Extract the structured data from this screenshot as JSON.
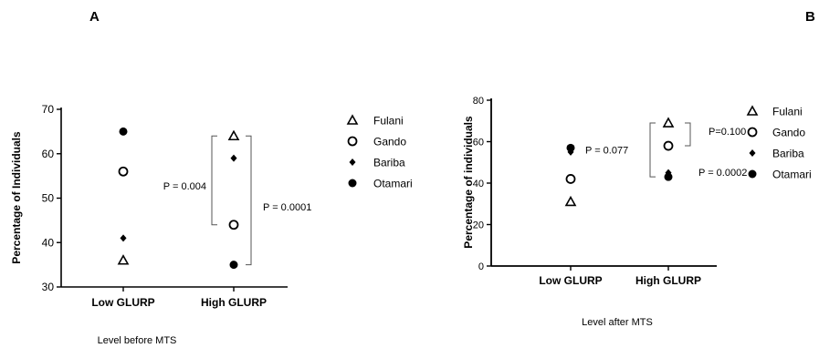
{
  "chart_data": [
    {
      "panel": "A",
      "type": "scatter",
      "categories": [
        "Low GLURP",
        "High GLURP"
      ],
      "xlabel": "Level before MTS",
      "ylabel": "Percentage of Individuals",
      "ylim": [
        30,
        70
      ],
      "yticks": [
        30,
        40,
        50,
        60,
        70
      ],
      "grid": false,
      "legend_position": "right",
      "series": [
        {
          "name": "Fulani",
          "marker": "triangle-open",
          "values": [
            36,
            64
          ]
        },
        {
          "name": "Gando",
          "marker": "circle-open",
          "values": [
            56,
            44
          ]
        },
        {
          "name": "Bariba",
          "marker": "diamond-filled",
          "values": [
            41,
            59
          ]
        },
        {
          "name": "Otamari",
          "marker": "circle-filled",
          "values": [
            65,
            35
          ]
        }
      ],
      "annotations": [
        {
          "text": "P = 0.004",
          "category": "High GLURP",
          "from": 64,
          "to": 44,
          "side": "left"
        },
        {
          "text": "P = 0.0001",
          "category": "High GLURP",
          "from": 64,
          "to": 35,
          "side": "right"
        }
      ]
    },
    {
      "panel": "B",
      "type": "scatter",
      "categories": [
        "Low GLURP",
        "High GLURP"
      ],
      "xlabel": "Level after MTS",
      "ylabel": "Percentage of individuals",
      "ylim": [
        0,
        80
      ],
      "yticks": [
        0,
        20,
        40,
        60,
        80
      ],
      "grid": false,
      "legend_position": "right",
      "series": [
        {
          "name": "Fulani",
          "marker": "triangle-open",
          "values": [
            31,
            69
          ]
        },
        {
          "name": "Gando",
          "marker": "circle-open",
          "values": [
            42,
            58
          ]
        },
        {
          "name": "Bariba",
          "marker": "diamond-filled",
          "values": [
            55,
            45
          ]
        },
        {
          "name": "Otamari",
          "marker": "circle-filled",
          "values": [
            57,
            43
          ]
        }
      ],
      "annotations": [
        {
          "text": "P = 0.077",
          "category": "Low GLURP",
          "from": 57,
          "to": 55,
          "side": "right"
        },
        {
          "text": "P=0.100",
          "category": "High GLURP",
          "from": 69,
          "to": 58,
          "side": "right"
        },
        {
          "text": "P = 0.0002",
          "category": "High GLURP",
          "from": 69,
          "to": 43,
          "side": "left"
        }
      ]
    }
  ]
}
